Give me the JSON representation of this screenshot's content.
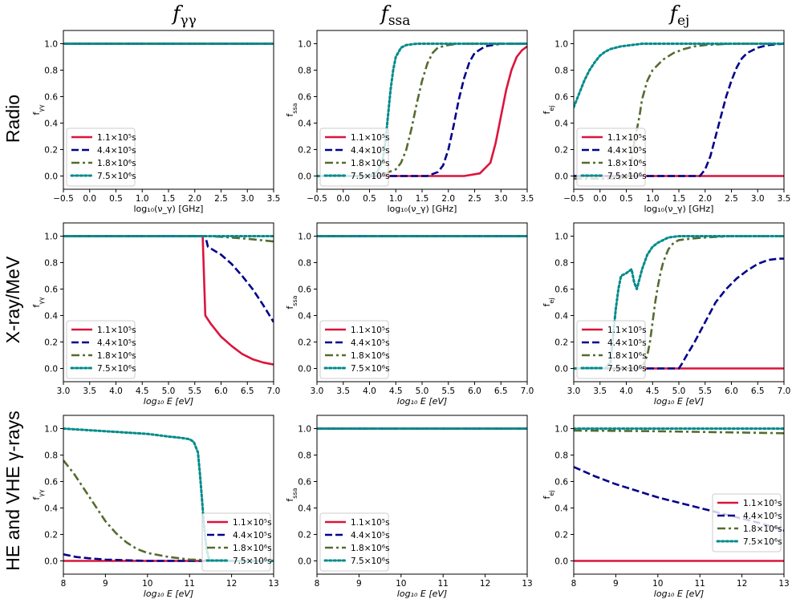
{
  "column_titles": [
    {
      "main": "f",
      "sub": "γγ"
    },
    {
      "main": "f",
      "sub": "ssa"
    },
    {
      "main": "f",
      "sub": "ej"
    }
  ],
  "row_labels": [
    "Radio",
    "X-ray/MeV",
    "HE and VHE γ-rays"
  ],
  "legend_labels": [
    "1.1×10⁵s",
    "4.4×10⁵s",
    "1.8×10⁶s",
    "7.5×10⁶s"
  ],
  "series_colors": [
    "#dc143c",
    "#00008b",
    "#556b2f",
    "#008b8b"
  ],
  "series_styles": [
    "solid",
    "dashed",
    "dashdot",
    "dotted"
  ],
  "chart_data": [
    {
      "id": "radio-fgg",
      "type": "line",
      "ylabel": "f_γγ",
      "xlabel": "log₁₀(ν_γ) [GHz]",
      "xlim": [
        -0.5,
        3.5
      ],
      "ylim": [
        -0.1,
        1.1
      ],
      "xticks": [
        "−0.5",
        "0.0",
        "0.5",
        "1.0",
        "1.5",
        "2.0",
        "2.5",
        "3.0",
        "3.5"
      ],
      "yticks": [
        "0.0",
        "0.2",
        "0.4",
        "0.6",
        "0.8",
        "1.0"
      ],
      "legend_loc": "lower-left",
      "series": [
        {
          "name": "1.1×10⁵s",
          "x": [
            -0.5,
            3.5
          ],
          "y": [
            1.0,
            1.0
          ]
        },
        {
          "name": "4.4×10⁵s",
          "x": [
            -0.5,
            3.5
          ],
          "y": [
            1.0,
            1.0
          ]
        },
        {
          "name": "1.8×10⁶s",
          "x": [
            -0.5,
            3.5
          ],
          "y": [
            1.0,
            1.0
          ]
        },
        {
          "name": "7.5×10⁶s",
          "x": [
            -0.5,
            3.5
          ],
          "y": [
            1.0,
            1.0
          ]
        }
      ]
    },
    {
      "id": "radio-fssa",
      "type": "line",
      "ylabel": "f_ssa",
      "xlabel": "log₁₀(ν_γ) [GHz]",
      "xlim": [
        -0.5,
        3.5
      ],
      "ylim": [
        -0.1,
        1.1
      ],
      "xticks": [
        "−0.5",
        "0.0",
        "0.5",
        "1.0",
        "1.5",
        "2.0",
        "2.5",
        "3.0",
        "3.5"
      ],
      "yticks": [
        "0.0",
        "0.2",
        "0.4",
        "0.6",
        "0.8",
        "1.0"
      ],
      "legend_loc": "lower-left",
      "series": [
        {
          "name": "1.1×10⁵s",
          "x": [
            -0.5,
            2.3,
            2.6,
            2.8,
            2.9,
            3.0,
            3.1,
            3.2,
            3.3,
            3.4,
            3.5
          ],
          "y": [
            0,
            0.0,
            0.02,
            0.1,
            0.25,
            0.45,
            0.65,
            0.8,
            0.9,
            0.95,
            0.98
          ]
        },
        {
          "name": "4.4×10⁵s",
          "x": [
            -0.5,
            1.6,
            1.8,
            1.9,
            2.0,
            2.1,
            2.2,
            2.3,
            2.4,
            2.5,
            2.7,
            3.0,
            3.5
          ],
          "y": [
            0,
            0.0,
            0.03,
            0.08,
            0.2,
            0.38,
            0.58,
            0.74,
            0.86,
            0.93,
            0.98,
            1.0,
            1.0
          ]
        },
        {
          "name": "1.8×10⁶s",
          "x": [
            -0.5,
            0.5,
            0.8,
            1.0,
            1.1,
            1.2,
            1.3,
            1.4,
            1.5,
            1.6,
            1.7,
            1.8,
            2.0,
            2.2,
            3.5
          ],
          "y": [
            0,
            0.0,
            0.02,
            0.05,
            0.1,
            0.2,
            0.36,
            0.55,
            0.72,
            0.85,
            0.93,
            0.97,
            0.99,
            1.0,
            1.0
          ]
        },
        {
          "name": "7.5×10⁶s",
          "x": [
            -0.5,
            0.5,
            0.65,
            0.75,
            0.8,
            0.85,
            0.9,
            0.95,
            1.0,
            1.1,
            1.2,
            1.4,
            1.6,
            3.5
          ],
          "y": [
            0,
            0.0,
            0.03,
            0.12,
            0.25,
            0.45,
            0.65,
            0.8,
            0.9,
            0.97,
            0.99,
            1.0,
            1.0,
            1.0
          ]
        }
      ]
    },
    {
      "id": "radio-fej",
      "type": "line",
      "ylabel": "f_ej",
      "xlabel": "log₁₀(ν_γ) [GHz]",
      "xlim": [
        -0.5,
        3.5
      ],
      "ylim": [
        -0.1,
        1.1
      ],
      "xticks": [
        "−0.5",
        "0.0",
        "0.5",
        "1.0",
        "1.5",
        "2.0",
        "2.5",
        "3.0",
        "3.5"
      ],
      "yticks": [
        "0.0",
        "0.2",
        "0.4",
        "0.6",
        "0.8",
        "1.0"
      ],
      "legend_loc": "lower-left",
      "series": [
        {
          "name": "1.1×10⁵s",
          "x": [
            -0.5,
            3.5
          ],
          "y": [
            0.0,
            0.0
          ]
        },
        {
          "name": "4.4×10⁵s",
          "x": [
            -0.5,
            1.9,
            2.0,
            2.1,
            2.2,
            2.3,
            2.4,
            2.5,
            2.6,
            2.7,
            2.8,
            3.0,
            3.2,
            3.5
          ],
          "y": [
            0,
            0.0,
            0.05,
            0.15,
            0.3,
            0.45,
            0.6,
            0.72,
            0.82,
            0.89,
            0.93,
            0.97,
            0.99,
            1.0
          ]
        },
        {
          "name": "1.8×10⁶s",
          "x": [
            -0.5,
            0.45,
            0.55,
            0.6,
            0.65,
            0.7,
            0.75,
            0.8,
            0.9,
            1.0,
            1.2,
            1.4,
            1.6,
            1.8,
            2.0,
            2.5,
            3.5
          ],
          "y": [
            -0.02,
            -0.02,
            0.0,
            0.12,
            0.25,
            0.35,
            0.45,
            0.58,
            0.72,
            0.8,
            0.88,
            0.93,
            0.96,
            0.98,
            0.99,
            1.0,
            1.0
          ]
        },
        {
          "name": "7.5×10⁶s",
          "x": [
            -0.5,
            -0.4,
            -0.3,
            -0.2,
            -0.1,
            0.0,
            0.1,
            0.2,
            0.4,
            0.6,
            0.8,
            1.0,
            3.5
          ],
          "y": [
            0.52,
            0.62,
            0.72,
            0.8,
            0.86,
            0.91,
            0.94,
            0.96,
            0.98,
            0.99,
            1.0,
            1.0,
            1.0
          ]
        }
      ]
    },
    {
      "id": "xray-fgg",
      "type": "line",
      "ylabel": "f_γγ",
      "xlabel": "log₁₀ E [eV]",
      "xlim": [
        3.0,
        7.0
      ],
      "ylim": [
        -0.1,
        1.1
      ],
      "xticks": [
        "3.0",
        "3.5",
        "4.0",
        "4.5",
        "5.0",
        "5.5",
        "6.0",
        "6.5",
        "7.0"
      ],
      "yticks": [
        "0.0",
        "0.2",
        "0.4",
        "0.6",
        "0.8",
        "1.0"
      ],
      "legend_loc": "lower-left",
      "series": [
        {
          "name": "1.1×10⁵s",
          "x": [
            3.0,
            5.65,
            5.7,
            5.8,
            6.0,
            6.2,
            6.4,
            6.6,
            6.8,
            7.0
          ],
          "y": [
            1.0,
            1.0,
            0.4,
            0.34,
            0.24,
            0.17,
            0.11,
            0.07,
            0.045,
            0.03
          ]
        },
        {
          "name": "4.4×10⁵s",
          "x": [
            3.0,
            5.7,
            5.75,
            6.0,
            6.2,
            6.4,
            6.6,
            6.8,
            7.0
          ],
          "y": [
            1.0,
            1.0,
            0.92,
            0.86,
            0.79,
            0.7,
            0.6,
            0.48,
            0.35
          ]
        },
        {
          "name": "1.8×10⁶s",
          "x": [
            3.0,
            5.7,
            6.0,
            6.5,
            7.0
          ],
          "y": [
            1.0,
            1.0,
            0.995,
            0.98,
            0.96
          ]
        },
        {
          "name": "7.5×10⁶s",
          "x": [
            3.0,
            7.0
          ],
          "y": [
            1.0,
            1.0
          ]
        }
      ]
    },
    {
      "id": "xray-fssa",
      "type": "line",
      "ylabel": "f_ssa",
      "xlabel": "log₁₀ E [eV]",
      "xlim": [
        3.0,
        7.0
      ],
      "ylim": [
        -0.1,
        1.1
      ],
      "xticks": [
        "3.0",
        "3.5",
        "4.0",
        "4.5",
        "5.0",
        "5.5",
        "6.0",
        "6.5",
        "7.0"
      ],
      "yticks": [
        "0.0",
        "0.2",
        "0.4",
        "0.6",
        "0.8",
        "1.0"
      ],
      "legend_loc": "lower-left",
      "series": [
        {
          "name": "1.1×10⁵s",
          "x": [
            3.0,
            7.0
          ],
          "y": [
            1.0,
            1.0
          ]
        },
        {
          "name": "4.4×10⁵s",
          "x": [
            3.0,
            7.0
          ],
          "y": [
            1.0,
            1.0
          ]
        },
        {
          "name": "1.8×10⁶s",
          "x": [
            3.0,
            7.0
          ],
          "y": [
            1.0,
            1.0
          ]
        },
        {
          "name": "7.5×10⁶s",
          "x": [
            3.0,
            7.0
          ],
          "y": [
            1.0,
            1.0
          ]
        }
      ]
    },
    {
      "id": "xray-fej",
      "type": "line",
      "ylabel": "f_ej",
      "xlabel": "log₁₀ E [eV]",
      "xlim": [
        3.0,
        7.0
      ],
      "ylim": [
        -0.1,
        1.1
      ],
      "xticks": [
        "3.0",
        "3.5",
        "4.0",
        "4.5",
        "5.0",
        "5.5",
        "6.0",
        "6.5",
        "7.0"
      ],
      "yticks": [
        "0.0",
        "0.2",
        "0.4",
        "0.6",
        "0.8",
        "1.0"
      ],
      "legend_loc": "lower-left",
      "series": [
        {
          "name": "1.1×10⁵s",
          "x": [
            3.0,
            7.0
          ],
          "y": [
            0.0,
            0.0
          ]
        },
        {
          "name": "4.4×10⁵s",
          "x": [
            3.0,
            5.0,
            5.05,
            5.15,
            5.3,
            5.5,
            5.7,
            5.9,
            6.1,
            6.3,
            6.5,
            6.7,
            6.9,
            7.0
          ],
          "y": [
            0,
            0.0,
            0.03,
            0.1,
            0.2,
            0.35,
            0.5,
            0.6,
            0.68,
            0.74,
            0.79,
            0.82,
            0.83,
            0.83
          ]
        },
        {
          "name": "1.8×10⁶s",
          "x": [
            3.0,
            4.3,
            4.4,
            4.45,
            4.5,
            4.55,
            4.6,
            4.65,
            4.7,
            4.8,
            4.9,
            5.0,
            5.2,
            5.5,
            6.0,
            7.0
          ],
          "y": [
            0,
            0.0,
            0.1,
            0.2,
            0.35,
            0.5,
            0.62,
            0.72,
            0.8,
            0.9,
            0.95,
            0.97,
            0.98,
            0.99,
            1.0,
            1.0
          ]
        },
        {
          "name": "7.5×10⁶s",
          "x": [
            3.0,
            3.6,
            3.7,
            3.75,
            3.8,
            3.85,
            3.9,
            4.0,
            4.1,
            4.15,
            4.2,
            4.3,
            4.4,
            4.5,
            4.6,
            4.7,
            4.8,
            5.0,
            7.0
          ],
          "y": [
            0,
            0.0,
            0.05,
            0.25,
            0.45,
            0.6,
            0.7,
            0.72,
            0.75,
            0.65,
            0.6,
            0.75,
            0.86,
            0.92,
            0.95,
            0.97,
            0.99,
            1.0,
            1.0
          ]
        }
      ]
    },
    {
      "id": "he-fgg",
      "type": "line",
      "ylabel": "f_γγ",
      "xlabel": "log₁₀ E [eV]",
      "xlim": [
        8,
        13
      ],
      "ylim": [
        -0.1,
        1.1
      ],
      "xticks": [
        "8",
        "9",
        "10",
        "11",
        "12",
        "13"
      ],
      "yticks": [
        "0.0",
        "0.2",
        "0.4",
        "0.6",
        "0.8",
        "1.0"
      ],
      "legend_loc": "lower-right",
      "series": [
        {
          "name": "1.1×10⁵s",
          "x": [
            8,
            13
          ],
          "y": [
            0.0,
            0.0
          ]
        },
        {
          "name": "4.4×10⁵s",
          "x": [
            8,
            8.3,
            8.6,
            9.0,
            9.5,
            10,
            11,
            13
          ],
          "y": [
            0.05,
            0.03,
            0.02,
            0.01,
            0.005,
            0.0,
            0.0,
            0.0
          ]
        },
        {
          "name": "1.8×10⁶s",
          "x": [
            8,
            8.25,
            8.5,
            8.75,
            9,
            9.25,
            9.5,
            9.75,
            10,
            10.5,
            11,
            11.5,
            12,
            13
          ],
          "y": [
            0.76,
            0.66,
            0.54,
            0.42,
            0.3,
            0.21,
            0.14,
            0.09,
            0.06,
            0.03,
            0.01,
            0.005,
            0.0,
            0.0
          ]
        },
        {
          "name": "7.5×10⁶s",
          "x": [
            8,
            8.5,
            9,
            9.5,
            10,
            10.5,
            10.8,
            11.0,
            11.1,
            11.2,
            11.25,
            11.3,
            11.35,
            11.4,
            11.45,
            11.5,
            13
          ],
          "y": [
            1.0,
            0.99,
            0.98,
            0.97,
            0.96,
            0.94,
            0.93,
            0.92,
            0.9,
            0.82,
            0.65,
            0.45,
            0.25,
            0.1,
            0.03,
            0.0,
            0.0
          ]
        }
      ]
    },
    {
      "id": "he-fssa",
      "type": "line",
      "ylabel": "f_ssa",
      "xlabel": "log₁₀ E [eV]",
      "xlim": [
        8,
        13
      ],
      "ylim": [
        -0.1,
        1.1
      ],
      "xticks": [
        "8",
        "9",
        "10",
        "11",
        "12",
        "13"
      ],
      "yticks": [
        "0.0",
        "0.2",
        "0.4",
        "0.6",
        "0.8",
        "1.0"
      ],
      "legend_loc": "lower-left",
      "series": [
        {
          "name": "1.1×10⁵s",
          "x": [
            8,
            13
          ],
          "y": [
            1.0,
            1.0
          ]
        },
        {
          "name": "4.4×10⁵s",
          "x": [
            8,
            13
          ],
          "y": [
            1.0,
            1.0
          ]
        },
        {
          "name": "1.8×10⁶s",
          "x": [
            8,
            13
          ],
          "y": [
            1.0,
            1.0
          ]
        },
        {
          "name": "7.5×10⁶s",
          "x": [
            8,
            13
          ],
          "y": [
            1.0,
            1.0
          ]
        }
      ]
    },
    {
      "id": "he-fej",
      "type": "line",
      "ylabel": "f_ej",
      "xlabel": "log₁₀ E [eV]",
      "xlim": [
        8,
        13
      ],
      "ylim": [
        -0.1,
        1.1
      ],
      "xticks": [
        "8",
        "9",
        "10",
        "11",
        "12",
        "13"
      ],
      "yticks": [
        "0.0",
        "0.2",
        "0.4",
        "0.6",
        "0.8",
        "1.0"
      ],
      "legend_loc": "center-right",
      "series": [
        {
          "name": "1.1×10⁵s",
          "x": [
            8,
            13
          ],
          "y": [
            0.0,
            0.0
          ]
        },
        {
          "name": "4.4×10⁵s",
          "x": [
            8,
            8.5,
            9,
            9.5,
            10,
            10.5,
            11,
            11.5,
            12,
            12.5,
            13
          ],
          "y": [
            0.71,
            0.64,
            0.58,
            0.53,
            0.48,
            0.44,
            0.4,
            0.36,
            0.32,
            0.28,
            0.23
          ]
        },
        {
          "name": "1.8×10⁶s",
          "x": [
            8,
            9,
            10,
            11,
            12,
            13
          ],
          "y": [
            0.985,
            0.983,
            0.98,
            0.975,
            0.97,
            0.965
          ]
        },
        {
          "name": "7.5×10⁶s",
          "x": [
            8,
            13
          ],
          "y": [
            1.0,
            1.0
          ]
        }
      ]
    }
  ]
}
